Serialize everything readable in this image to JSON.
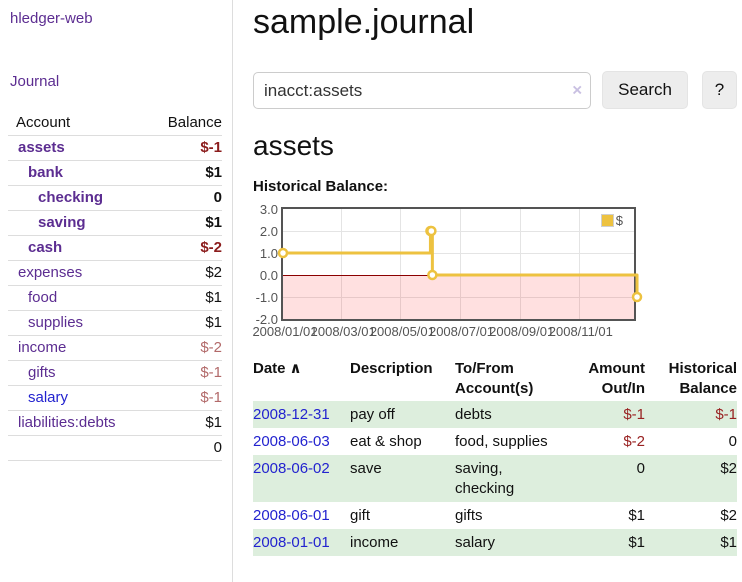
{
  "sidebar": {
    "brand": "hledger-web",
    "nav": {
      "journal": "Journal"
    },
    "accounts_table": {
      "headers": {
        "account": "Account",
        "balance": "Balance"
      },
      "rows": [
        {
          "name": "assets",
          "balance": "$-1"
        },
        {
          "name": "bank",
          "balance": "$1"
        },
        {
          "name": "checking",
          "balance": "0"
        },
        {
          "name": "saving",
          "balance": "$1"
        },
        {
          "name": "cash",
          "balance": "$-2"
        },
        {
          "name": "expenses",
          "balance": "$2"
        },
        {
          "name": "food",
          "balance": "$1"
        },
        {
          "name": "supplies",
          "balance": "$1"
        },
        {
          "name": "income",
          "balance": "$-2"
        },
        {
          "name": "gifts",
          "balance": "$-1"
        },
        {
          "name": "salary",
          "balance": "$-1"
        },
        {
          "name": "liabilities:debts",
          "balance": "$1"
        }
      ],
      "total": "0"
    }
  },
  "header": {
    "title": "sample.journal"
  },
  "search": {
    "query": "inacct:assets",
    "clear_icon": "×",
    "button_label": "Search",
    "help_label": "?"
  },
  "account_page": {
    "heading": "assets",
    "chart_label": "Historical Balance:"
  },
  "chart_data": {
    "type": "line",
    "title": "Historical Balance:",
    "steps": true,
    "series": [
      {
        "name": "$",
        "color": "#edc240",
        "points": [
          [
            "2008-01-01",
            1
          ],
          [
            "2008-06-01",
            2
          ],
          [
            "2008-06-02",
            2
          ],
          [
            "2008-06-03",
            0
          ],
          [
            "2008-12-31",
            -1
          ]
        ]
      }
    ],
    "ylim": [
      -2,
      3
    ],
    "xlim": [
      "2008-01-01",
      "2009-01-01"
    ],
    "yticks": [
      "3.0",
      "2.0",
      "1.0",
      "0.0",
      "-1.0",
      "-2.0"
    ],
    "xticks": [
      "2008/01/01",
      "2008/03/01",
      "2008/05/01",
      "2008/07/01",
      "2008/09/01",
      "2008/11/01"
    ],
    "legend": "$",
    "legend_position": "top-right",
    "grid": true,
    "negative_region_color": "rgba(255,0,0,0.12)",
    "zero_line_color": "#8b0000"
  },
  "register": {
    "headers": {
      "date": "Date",
      "description": "Description",
      "tofrom": "To/From Account(s)",
      "amount": "Amount Out/In",
      "balance": "Historical Balance"
    },
    "sort_icon": "∧",
    "rows": [
      {
        "date": "2008-12-31",
        "description": "pay off",
        "accounts": "debts",
        "amount": "$-1",
        "balance": "$-1"
      },
      {
        "date": "2008-06-03",
        "description": "eat & shop",
        "accounts": "food, supplies",
        "amount": "$-2",
        "balance": "0"
      },
      {
        "date": "2008-06-02",
        "description": "save",
        "accounts": "saving,\nchecking",
        "amount": "0",
        "balance": "$2"
      },
      {
        "date": "2008-06-01",
        "description": "gift",
        "accounts": "gifts",
        "amount": "$1",
        "balance": "$2"
      },
      {
        "date": "2008-01-01",
        "description": "income",
        "accounts": "salary",
        "amount": "$1",
        "balance": "$1"
      }
    ]
  },
  "colors": {
    "accent_purple": "#5c2d91",
    "link_blue": "#2323cf",
    "negative_strong": "#8b1c1c",
    "negative_muted": "#b26969",
    "register_negative": "#992222",
    "row_green": "#ddeedd",
    "chart_series": "#edc240",
    "chart_border": "#545454"
  }
}
